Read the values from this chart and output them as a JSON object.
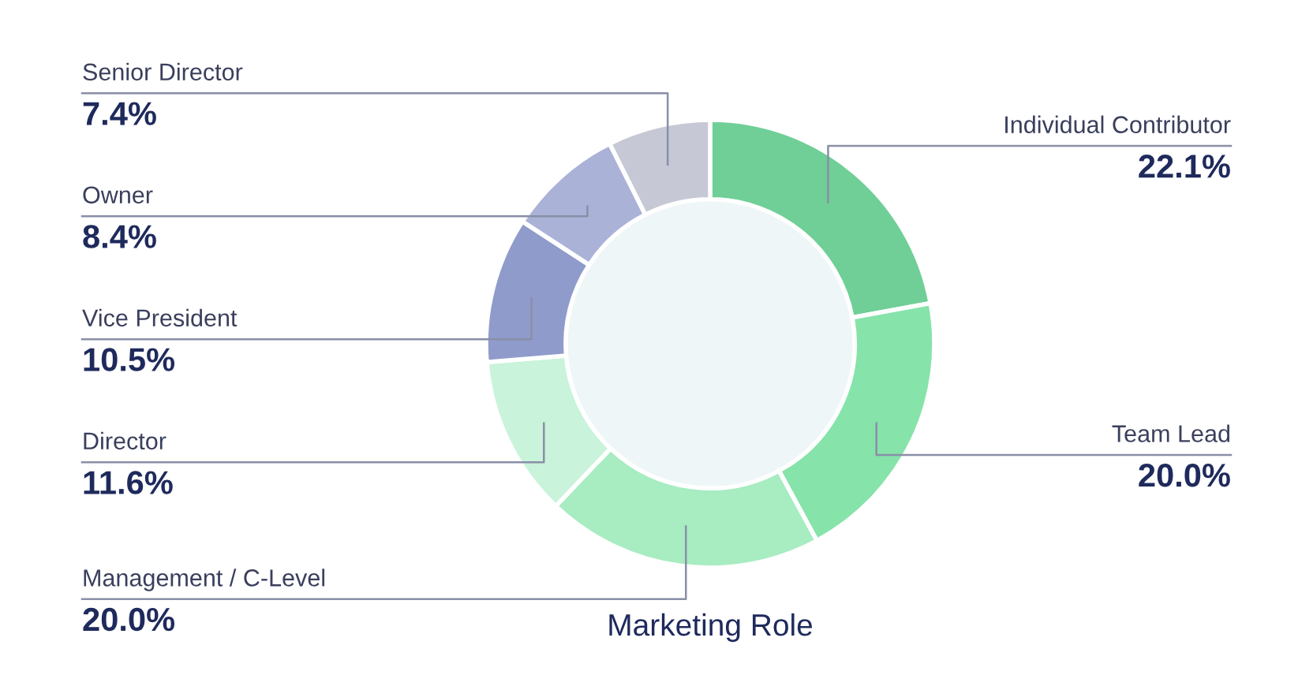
{
  "chart_data": {
    "type": "donut",
    "title": "Marketing Role",
    "categories": [
      "Individual Contributor",
      "Team Lead",
      "Management / C-Level",
      "Director",
      "Vice President",
      "Owner",
      "Senior Director"
    ],
    "values": [
      22.1,
      20.0,
      20.0,
      11.6,
      10.5,
      8.4,
      7.4
    ],
    "value_labels": [
      "22.1%",
      "20.0%",
      "20.0%",
      "11.6%",
      "10.5%",
      "8.4%",
      "7.4%"
    ],
    "colors": [
      "#6fcf97",
      "#86e3aa",
      "#a8ecc2",
      "#c9f3da",
      "#8f9bcb",
      "#aab2d7",
      "#c6c9d5"
    ]
  }
}
